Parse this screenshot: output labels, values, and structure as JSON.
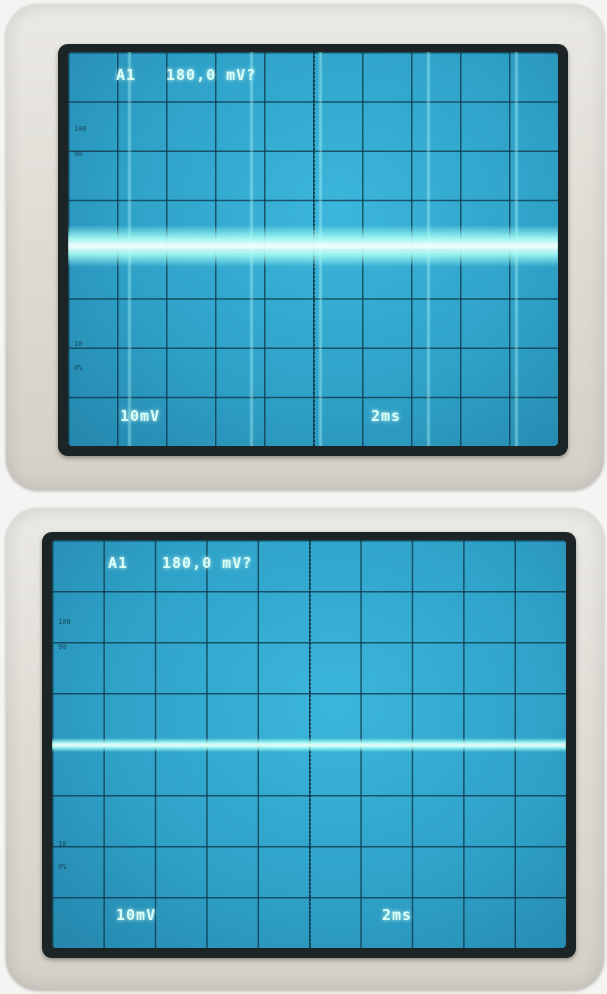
{
  "scopes": [
    {
      "trigger_label": "A1",
      "trigger_level": "180,0 mV?",
      "volts_per_div": "10mV",
      "time_per_div": "2ms"
    },
    {
      "trigger_label": "A1",
      "trigger_level": "180,0 mV?",
      "volts_per_div": "10mV",
      "time_per_div": "2ms"
    }
  ],
  "colors": {
    "screen": "#2fa2c8",
    "trace": "#f2fffe",
    "readout": "#d8fff7"
  }
}
